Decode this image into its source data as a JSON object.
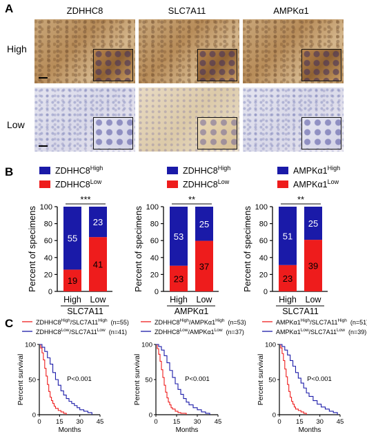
{
  "panels": {
    "a": "A",
    "b": "B",
    "c": "C"
  },
  "ihc": {
    "columns": [
      "ZDHHC8",
      "SLC7A11",
      "AMPKα1"
    ],
    "rows": [
      "High",
      "Low"
    ]
  },
  "colors": {
    "high": "#1a1aa8",
    "low": "#ee1c1c"
  },
  "chart_data": [
    {
      "type": "bar",
      "stacked": true,
      "panel": "B",
      "legend": [
        {
          "base": "ZDHHC8",
          "sup": "High"
        },
        {
          "base": "ZDHHC8",
          "sup": "Low"
        }
      ],
      "categories": [
        "High",
        "Low"
      ],
      "xlabel": "SLC7A11",
      "ylabel": "Percent of specimens",
      "ylim": [
        0,
        100
      ],
      "yticks": [
        0,
        20,
        40,
        60,
        80,
        100
      ],
      "series": [
        {
          "name": "ZDHHC8 Low",
          "counts": [
            19,
            41
          ],
          "percent": [
            25.7,
            64.1
          ]
        },
        {
          "name": "ZDHHC8 High",
          "counts": [
            55,
            23
          ],
          "percent": [
            74.3,
            35.9
          ]
        }
      ],
      "significance": "***"
    },
    {
      "type": "bar",
      "stacked": true,
      "panel": "B",
      "legend": [
        {
          "base": "ZDHHC8",
          "sup": "High"
        },
        {
          "base": "ZDHHC8",
          "sup": "Low"
        }
      ],
      "categories": [
        "High",
        "Low"
      ],
      "xlabel": "AMPKα1",
      "ylabel": "Percent of specimens",
      "ylim": [
        0,
        100
      ],
      "yticks": [
        0,
        20,
        40,
        60,
        80,
        100
      ],
      "series": [
        {
          "name": "ZDHHC8 Low",
          "counts": [
            23,
            37
          ],
          "percent": [
            30.3,
            59.7
          ]
        },
        {
          "name": "ZDHHC8 High",
          "counts": [
            53,
            25
          ],
          "percent": [
            69.7,
            40.3
          ]
        }
      ],
      "significance": "**"
    },
    {
      "type": "bar",
      "stacked": true,
      "panel": "B",
      "legend": [
        {
          "base": "AMPKα1",
          "sup": "High"
        },
        {
          "base": "AMPKα1",
          "sup": "Low"
        }
      ],
      "categories": [
        "High",
        "Low"
      ],
      "xlabel": "SLC7A11",
      "ylabel": "Percent of specimens",
      "ylim": [
        0,
        100
      ],
      "yticks": [
        0,
        20,
        40,
        60,
        80,
        100
      ],
      "series": [
        {
          "name": "AMPKα1 Low",
          "counts": [
            23,
            39
          ],
          "percent": [
            31.1,
            60.9
          ]
        },
        {
          "name": "AMPKα1 High",
          "counts": [
            51,
            25
          ],
          "percent": [
            68.9,
            39.1
          ]
        }
      ],
      "significance": "**"
    },
    {
      "type": "line",
      "step": true,
      "panel": "C",
      "legend": [
        {
          "parts": [
            [
              "ZDHHC8",
              "High"
            ],
            [
              "/SLC7A11",
              "High"
            ]
          ],
          "n": "(n=55)",
          "color": "#ee1c1c"
        },
        {
          "parts": [
            [
              "ZDHHC8",
              "Low"
            ],
            [
              "/SLC7A11",
              "Low"
            ]
          ],
          "n": "(n=41)",
          "color": "#1a1aa8"
        }
      ],
      "xlabel": "Months",
      "ylabel": "Percent survival",
      "xlim": [
        0,
        45
      ],
      "xticks": [
        0,
        15,
        30,
        45
      ],
      "ylim": [
        0,
        100
      ],
      "yticks": [
        0,
        50,
        100
      ],
      "annotation": "P<0.001",
      "series": [
        {
          "name": "high/high",
          "color": "#ee1c1c",
          "x": [
            0,
            1,
            2,
            3,
            4,
            5,
            6,
            7,
            8,
            9,
            10,
            11,
            12,
            14,
            16,
            18,
            20
          ],
          "y": [
            100,
            95,
            88,
            78,
            66,
            55,
            43,
            33,
            25,
            20,
            16,
            12,
            9,
            6,
            4,
            2,
            0
          ]
        },
        {
          "name": "low/low",
          "color": "#1a1aa8",
          "x": [
            0,
            2,
            4,
            6,
            8,
            10,
            12,
            14,
            16,
            18,
            20,
            22,
            24,
            26,
            28,
            30,
            33,
            36,
            39
          ],
          "y": [
            100,
            96,
            90,
            81,
            72,
            60,
            50,
            42,
            34,
            28,
            23,
            19,
            16,
            13,
            10,
            7,
            5,
            3,
            0
          ]
        }
      ]
    },
    {
      "type": "line",
      "step": true,
      "panel": "C",
      "legend": [
        {
          "parts": [
            [
              "ZDHHC8",
              "High"
            ],
            [
              "/AMPKα1",
              "High"
            ]
          ],
          "n": "(n=53)",
          "color": "#ee1c1c"
        },
        {
          "parts": [
            [
              "ZDHHC8",
              "Low"
            ],
            [
              "/AMPKα1",
              "Low"
            ]
          ],
          "n": "(n=37)",
          "color": "#1a1aa8"
        }
      ],
      "xlabel": "Months",
      "ylabel": "Percent survival",
      "xlim": [
        0,
        45
      ],
      "xticks": [
        0,
        15,
        30,
        45
      ],
      "ylim": [
        0,
        100
      ],
      "yticks": [
        0,
        50,
        100
      ],
      "annotation": "P<0.001",
      "series": [
        {
          "name": "high/high",
          "color": "#ee1c1c",
          "x": [
            0,
            1,
            2,
            3,
            4,
            5,
            6,
            7,
            8,
            9,
            10,
            11,
            12,
            14,
            16,
            18,
            22
          ],
          "y": [
            100,
            94,
            86,
            76,
            64,
            53,
            42,
            32,
            24,
            18,
            14,
            10,
            8,
            5,
            3,
            2,
            0
          ]
        },
        {
          "name": "low/low",
          "color": "#1a1aa8",
          "x": [
            0,
            2,
            4,
            6,
            8,
            10,
            12,
            14,
            16,
            18,
            20,
            22,
            24,
            27,
            30,
            33,
            36,
            39
          ],
          "y": [
            100,
            97,
            92,
            84,
            74,
            63,
            53,
            44,
            36,
            29,
            23,
            18,
            14,
            10,
            7,
            4,
            2,
            0
          ]
        }
      ]
    },
    {
      "type": "line",
      "step": true,
      "panel": "C",
      "legend": [
        {
          "parts": [
            [
              "AMPKα1",
              "High"
            ],
            [
              "/SLC7A11",
              "High"
            ]
          ],
          "n": "(n=51)",
          "color": "#ee1c1c"
        },
        {
          "parts": [
            [
              "AMPKα1",
              "Low"
            ],
            [
              "/SLC7A11",
              "Low"
            ]
          ],
          "n": "(n=39)",
          "color": "#1a1aa8"
        }
      ],
      "xlabel": "Months",
      "ylabel": "Percent survival",
      "xlim": [
        0,
        45
      ],
      "xticks": [
        0,
        15,
        30,
        45
      ],
      "ylim": [
        0,
        100
      ],
      "yticks": [
        0,
        50,
        100
      ],
      "annotation": "P<0.001",
      "series": [
        {
          "name": "high/high",
          "color": "#ee1c1c",
          "x": [
            0,
            1,
            2,
            3,
            4,
            5,
            6,
            7,
            8,
            9,
            10,
            11,
            12,
            14,
            16,
            18,
            20
          ],
          "y": [
            100,
            95,
            87,
            77,
            65,
            54,
            43,
            33,
            25,
            19,
            15,
            11,
            8,
            6,
            4,
            2,
            0
          ]
        },
        {
          "name": "low/low",
          "color": "#1a1aa8",
          "x": [
            0,
            2,
            4,
            6,
            8,
            10,
            12,
            14,
            16,
            18,
            20,
            22,
            25,
            28,
            31,
            34,
            37,
            40,
            43
          ],
          "y": [
            100,
            97,
            92,
            85,
            77,
            69,
            60,
            52,
            45,
            38,
            31,
            26,
            20,
            15,
            11,
            8,
            5,
            3,
            0
          ]
        }
      ]
    }
  ]
}
